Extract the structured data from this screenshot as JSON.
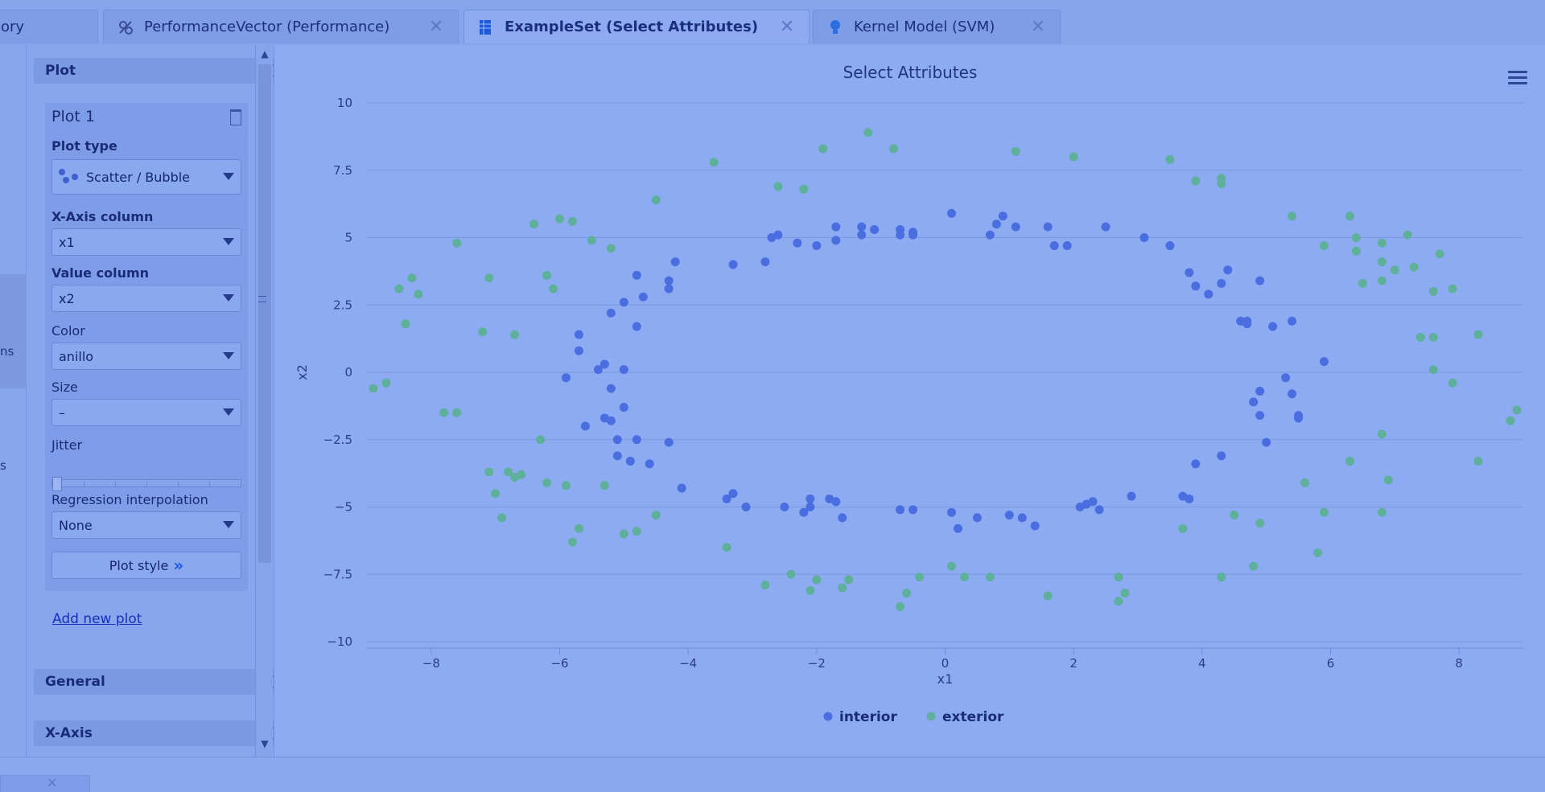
{
  "tabs": [
    {
      "label": "ory",
      "icon": "repository-icon",
      "active": false
    },
    {
      "label": "PerformanceVector (Performance)",
      "icon": "performance-icon",
      "active": false
    },
    {
      "label": "ExampleSet (Select Attributes)",
      "icon": "exampleset-icon",
      "active": true
    },
    {
      "label": "Kernel Model (SVM)",
      "icon": "model-bulb-icon",
      "active": false
    }
  ],
  "leftstrip": {
    "frag1": "ns",
    "frag2": "s"
  },
  "panel": {
    "plot_section": "Plot",
    "plot_box_title": "Plot 1",
    "plot_type_label": "Plot type",
    "plot_type_value": "Scatter / Bubble",
    "x_axis_label": "X-Axis column",
    "x_axis_value": "x1",
    "value_label": "Value column",
    "value_value": "x2",
    "color_label": "Color",
    "color_value": "anillo",
    "size_label": "Size",
    "size_value": "–",
    "jitter_label": "Jitter",
    "regression_label": "Regression interpolation",
    "regression_value": "None",
    "plot_style_button": "Plot style",
    "add_new_plot": "Add new plot",
    "general_section": "General",
    "xaxis_section": "X-Axis"
  },
  "colors": {
    "interior": "#4a6ee0",
    "exterior": "#5fb09b"
  },
  "chart_data": {
    "type": "scatter",
    "title": "Select Attributes",
    "xlabel": "x1",
    "ylabel": "x2",
    "xlim": [
      -9,
      9
    ],
    "ylim": [
      -10,
      10
    ],
    "xticks": [
      -8,
      -6,
      -4,
      -2,
      0,
      2,
      4,
      6,
      8
    ],
    "yticks": [
      -10,
      -7.5,
      -5,
      -2.5,
      0,
      2.5,
      5,
      7.5,
      10
    ],
    "ytick_labels": [
      "−10",
      "−7.5",
      "−5",
      "−2.5",
      "0",
      "2.5",
      "5",
      "7.5",
      "10"
    ],
    "xtick_labels": [
      "−8",
      "−6",
      "−4",
      "−2",
      "0",
      "2",
      "4",
      "6",
      "8"
    ],
    "legend": [
      "interior",
      "exterior"
    ],
    "legend_position": "bottom-center",
    "grid": "horizontal",
    "series": [
      {
        "name": "interior",
        "points": [
          [
            -5.9,
            -0.2
          ],
          [
            -5.7,
            0.8
          ],
          [
            -5.7,
            1.4
          ],
          [
            -5.6,
            -2
          ],
          [
            -5.4,
            0.1
          ],
          [
            -5.3,
            0.3
          ],
          [
            -5.3,
            -1.7
          ],
          [
            -5.2,
            -1.8
          ],
          [
            -5.2,
            -0.6
          ],
          [
            -5.1,
            -2.5
          ],
          [
            -5.1,
            -3.1
          ],
          [
            -5.0,
            -1.3
          ],
          [
            -5.0,
            0.1
          ],
          [
            -4.9,
            -3.3
          ],
          [
            -4.8,
            1.7
          ],
          [
            -4.8,
            -2.5
          ],
          [
            -4.6,
            -3.4
          ],
          [
            -4.3,
            -2.6
          ],
          [
            -4.1,
            -4.3
          ],
          [
            -3.4,
            -4.7
          ],
          [
            -3.3,
            -4.5
          ],
          [
            -3.1,
            -5.0
          ],
          [
            -2.5,
            -5.0
          ],
          [
            -2.2,
            -5.2
          ],
          [
            -2.1,
            -5.0
          ],
          [
            -2.1,
            -4.7
          ],
          [
            -1.8,
            -4.7
          ],
          [
            -1.7,
            -4.8
          ],
          [
            -1.6,
            -5.4
          ],
          [
            -0.7,
            -5.1
          ],
          [
            -0.5,
            -5.1
          ],
          [
            0.1,
            -5.2
          ],
          [
            0.2,
            -5.8
          ],
          [
            0.5,
            -5.4
          ],
          [
            1.0,
            -5.3
          ],
          [
            1.2,
            -5.4
          ],
          [
            1.4,
            -5.7
          ],
          [
            2.1,
            -5.0
          ],
          [
            2.2,
            -4.9
          ],
          [
            2.3,
            -4.8
          ],
          [
            2.4,
            -5.1
          ],
          [
            2.9,
            -4.6
          ],
          [
            3.7,
            -4.6
          ],
          [
            3.8,
            -4.7
          ],
          [
            3.9,
            -3.4
          ],
          [
            4.3,
            -3.1
          ],
          [
            4.8,
            -1.1
          ],
          [
            4.9,
            -1.6
          ],
          [
            4.9,
            -0.7
          ],
          [
            5.0,
            -2.6
          ],
          [
            5.3,
            -0.2
          ],
          [
            5.4,
            -0.8
          ],
          [
            5.5,
            -1.7
          ],
          [
            5.5,
            -1.6
          ],
          [
            5.9,
            0.4
          ],
          [
            5.4,
            1.9
          ],
          [
            5.1,
            1.7
          ],
          [
            4.9,
            3.4
          ],
          [
            4.7,
            1.8
          ],
          [
            4.7,
            1.9
          ],
          [
            4.6,
            1.9
          ],
          [
            4.4,
            3.8
          ],
          [
            4.3,
            3.3
          ],
          [
            4.1,
            2.9
          ],
          [
            3.9,
            3.2
          ],
          [
            3.8,
            3.7
          ],
          [
            3.5,
            4.7
          ],
          [
            3.1,
            5.0
          ],
          [
            2.5,
            5.4
          ],
          [
            1.9,
            4.7
          ],
          [
            1.7,
            4.7
          ],
          [
            1.6,
            5.4
          ],
          [
            1.1,
            5.4
          ],
          [
            0.9,
            5.8
          ],
          [
            0.8,
            5.5
          ],
          [
            0.7,
            5.1
          ],
          [
            0.1,
            5.9
          ],
          [
            -0.5,
            5.1
          ],
          [
            -0.5,
            5.2
          ],
          [
            -0.7,
            5.1
          ],
          [
            -0.7,
            5.3
          ],
          [
            -1.1,
            5.3
          ],
          [
            -1.3,
            5.1
          ],
          [
            -1.3,
            5.4
          ],
          [
            -1.7,
            5.4
          ],
          [
            -1.7,
            4.9
          ],
          [
            -2.0,
            4.7
          ],
          [
            -2.3,
            4.8
          ],
          [
            -2.6,
            5.1
          ],
          [
            -2.7,
            5.0
          ],
          [
            -2.8,
            4.1
          ],
          [
            -3.3,
            4.0
          ],
          [
            -4.2,
            4.1
          ],
          [
            -4.3,
            3.4
          ],
          [
            -4.3,
            3.1
          ],
          [
            -4.7,
            2.8
          ],
          [
            -4.8,
            3.6
          ],
          [
            -5.0,
            2.6
          ],
          [
            -5.2,
            2.2
          ]
        ]
      },
      {
        "name": "exterior",
        "points": [
          [
            -8.9,
            -0.6
          ],
          [
            -8.7,
            -0.4
          ],
          [
            -8.5,
            3.1
          ],
          [
            -8.4,
            1.8
          ],
          [
            -8.3,
            3.5
          ],
          [
            -8.2,
            2.9
          ],
          [
            -7.8,
            -1.5
          ],
          [
            -7.6,
            -1.5
          ],
          [
            -7.6,
            4.8
          ],
          [
            -7.2,
            1.5
          ],
          [
            -7.1,
            3.5
          ],
          [
            -7.1,
            -3.7
          ],
          [
            -7.0,
            -4.5
          ],
          [
            -6.9,
            -5.4
          ],
          [
            -6.8,
            -3.7
          ],
          [
            -6.7,
            -3.9
          ],
          [
            -6.7,
            1.4
          ],
          [
            -6.6,
            -3.8
          ],
          [
            -6.4,
            5.5
          ],
          [
            -6.3,
            -2.5
          ],
          [
            -6.2,
            3.6
          ],
          [
            -6.2,
            -4.1
          ],
          [
            -6.1,
            3.1
          ],
          [
            -6.0,
            5.7
          ],
          [
            -5.9,
            -4.2
          ],
          [
            -5.8,
            5.6
          ],
          [
            -5.8,
            -6.3
          ],
          [
            -5.7,
            -5.8
          ],
          [
            -5.5,
            4.9
          ],
          [
            -5.3,
            -4.2
          ],
          [
            -5.2,
            4.6
          ],
          [
            -5.0,
            -6.0
          ],
          [
            -4.8,
            -5.9
          ],
          [
            -4.5,
            6.4
          ],
          [
            -4.5,
            -5.3
          ],
          [
            -3.6,
            7.8
          ],
          [
            -3.4,
            -6.5
          ],
          [
            -2.8,
            -7.9
          ],
          [
            -2.6,
            6.9
          ],
          [
            -2.4,
            -7.5
          ],
          [
            -2.2,
            6.8
          ],
          [
            -2.1,
            -8.1
          ],
          [
            -2.0,
            -7.7
          ],
          [
            -1.9,
            8.3
          ],
          [
            -1.6,
            -8.0
          ],
          [
            -1.5,
            -7.7
          ],
          [
            -1.2,
            8.9
          ],
          [
            -0.8,
            8.3
          ],
          [
            -0.7,
            -8.7
          ],
          [
            -0.6,
            -8.2
          ],
          [
            -0.4,
            -7.6
          ],
          [
            0.1,
            -7.2
          ],
          [
            0.3,
            -7.6
          ],
          [
            0.7,
            -7.6
          ],
          [
            1.1,
            8.2
          ],
          [
            1.6,
            -8.3
          ],
          [
            2.0,
            8.0
          ],
          [
            2.7,
            -7.6
          ],
          [
            2.7,
            -8.5
          ],
          [
            2.8,
            -8.2
          ],
          [
            3.5,
            7.9
          ],
          [
            3.7,
            -5.8
          ],
          [
            3.9,
            7.1
          ],
          [
            4.3,
            7.0
          ],
          [
            4.3,
            7.2
          ],
          [
            4.3,
            -7.6
          ],
          [
            4.5,
            -5.3
          ],
          [
            4.8,
            -7.2
          ],
          [
            4.9,
            -5.6
          ],
          [
            5.4,
            5.8
          ],
          [
            5.6,
            -4.1
          ],
          [
            5.8,
            -6.7
          ],
          [
            5.9,
            -5.2
          ],
          [
            5.9,
            4.7
          ],
          [
            6.3,
            5.8
          ],
          [
            6.3,
            -3.3
          ],
          [
            6.4,
            5.0
          ],
          [
            6.4,
            4.5
          ],
          [
            6.5,
            3.3
          ],
          [
            6.8,
            4.8
          ],
          [
            6.8,
            4.1
          ],
          [
            6.8,
            3.4
          ],
          [
            6.8,
            -2.3
          ],
          [
            6.8,
            -5.2
          ],
          [
            6.9,
            -4.0
          ],
          [
            7.0,
            3.8
          ],
          [
            7.2,
            5.1
          ],
          [
            7.3,
            3.9
          ],
          [
            7.4,
            1.3
          ],
          [
            7.6,
            1.3
          ],
          [
            7.6,
            0.1
          ],
          [
            7.6,
            3.0
          ],
          [
            7.7,
            4.4
          ],
          [
            7.9,
            -0.4
          ],
          [
            7.9,
            3.1
          ],
          [
            8.3,
            1.4
          ],
          [
            8.3,
            -3.3
          ],
          [
            8.8,
            -1.8
          ],
          [
            8.9,
            -1.4
          ]
        ]
      }
    ]
  }
}
